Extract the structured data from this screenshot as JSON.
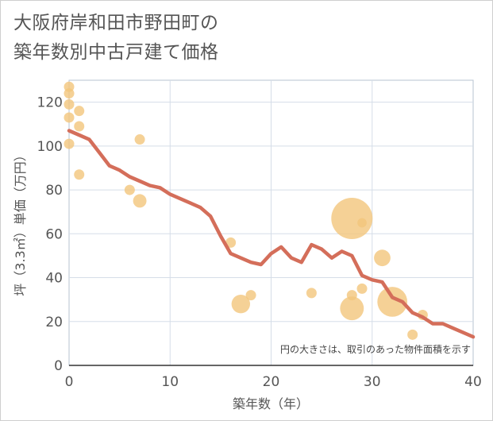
{
  "title_lines": [
    "大阪府岸和田市野田町の",
    "築年数別中古戸建て価格"
  ],
  "chart_data": {
    "type": "scatter",
    "title": "大阪府岸和田市野田町の築年数別中古戸建て価格",
    "xlabel": "築年数（年）",
    "ylabel": "坪（3.3㎡）単価（万円）",
    "xlim": [
      0,
      40
    ],
    "ylim": [
      0,
      130
    ],
    "xticks": [
      0,
      10,
      20,
      30,
      40
    ],
    "yticks": [
      0,
      20,
      40,
      60,
      80,
      100,
      120
    ],
    "grid": true,
    "note": "円の大きさは、取引のあった物件面積を示す",
    "colors": {
      "points": "#f2c57c",
      "line": "#d46e5a",
      "grid": "#d5dde8",
      "plot_border": "#b7c3d0"
    },
    "scatter": [
      {
        "x": 0,
        "y": 127,
        "size": 1.0
      },
      {
        "x": 0,
        "y": 124,
        "size": 1.0
      },
      {
        "x": 0,
        "y": 119,
        "size": 1.0
      },
      {
        "x": 0,
        "y": 113,
        "size": 1.0
      },
      {
        "x": 0,
        "y": 101,
        "size": 1.0
      },
      {
        "x": 1,
        "y": 116,
        "size": 1.0
      },
      {
        "x": 1,
        "y": 109,
        "size": 1.0
      },
      {
        "x": 1,
        "y": 87,
        "size": 1.0
      },
      {
        "x": 6,
        "y": 80,
        "size": 1.0
      },
      {
        "x": 7,
        "y": 103,
        "size": 1.0
      },
      {
        "x": 7,
        "y": 75,
        "size": 1.3
      },
      {
        "x": 16,
        "y": 56,
        "size": 1.0
      },
      {
        "x": 17,
        "y": 28,
        "size": 1.8
      },
      {
        "x": 18,
        "y": 32,
        "size": 1.0
      },
      {
        "x": 24,
        "y": 33,
        "size": 1.0
      },
      {
        "x": 28,
        "y": 67,
        "size": 4.0
      },
      {
        "x": 28,
        "y": 32,
        "size": 1.0
      },
      {
        "x": 28,
        "y": 26,
        "size": 2.3
      },
      {
        "x": 29,
        "y": 65,
        "size": 0.9
      },
      {
        "x": 29,
        "y": 35,
        "size": 1.0
      },
      {
        "x": 31,
        "y": 49,
        "size": 1.6
      },
      {
        "x": 32,
        "y": 29,
        "size": 2.9
      },
      {
        "x": 34,
        "y": 14,
        "size": 1.0
      },
      {
        "x": 35,
        "y": 23,
        "size": 1.0
      }
    ],
    "trend_x": [
      0,
      1,
      2,
      3,
      4,
      5,
      6,
      7,
      8,
      9,
      10,
      11,
      12,
      13,
      14,
      15,
      16,
      17,
      18,
      19,
      20,
      21,
      22,
      23,
      24,
      25,
      26,
      27,
      28,
      29,
      30,
      31,
      32,
      33,
      34,
      35,
      36,
      37,
      38,
      39,
      40
    ],
    "trend_y": [
      107,
      105,
      103,
      97,
      91,
      89,
      86,
      84,
      82,
      81,
      78,
      76,
      74,
      72,
      68,
      59,
      51,
      49,
      47,
      46,
      51,
      54,
      49,
      47,
      55,
      53,
      49,
      52,
      50,
      41,
      39,
      38,
      31,
      29,
      24,
      22,
      19,
      19,
      17,
      15,
      13
    ]
  }
}
